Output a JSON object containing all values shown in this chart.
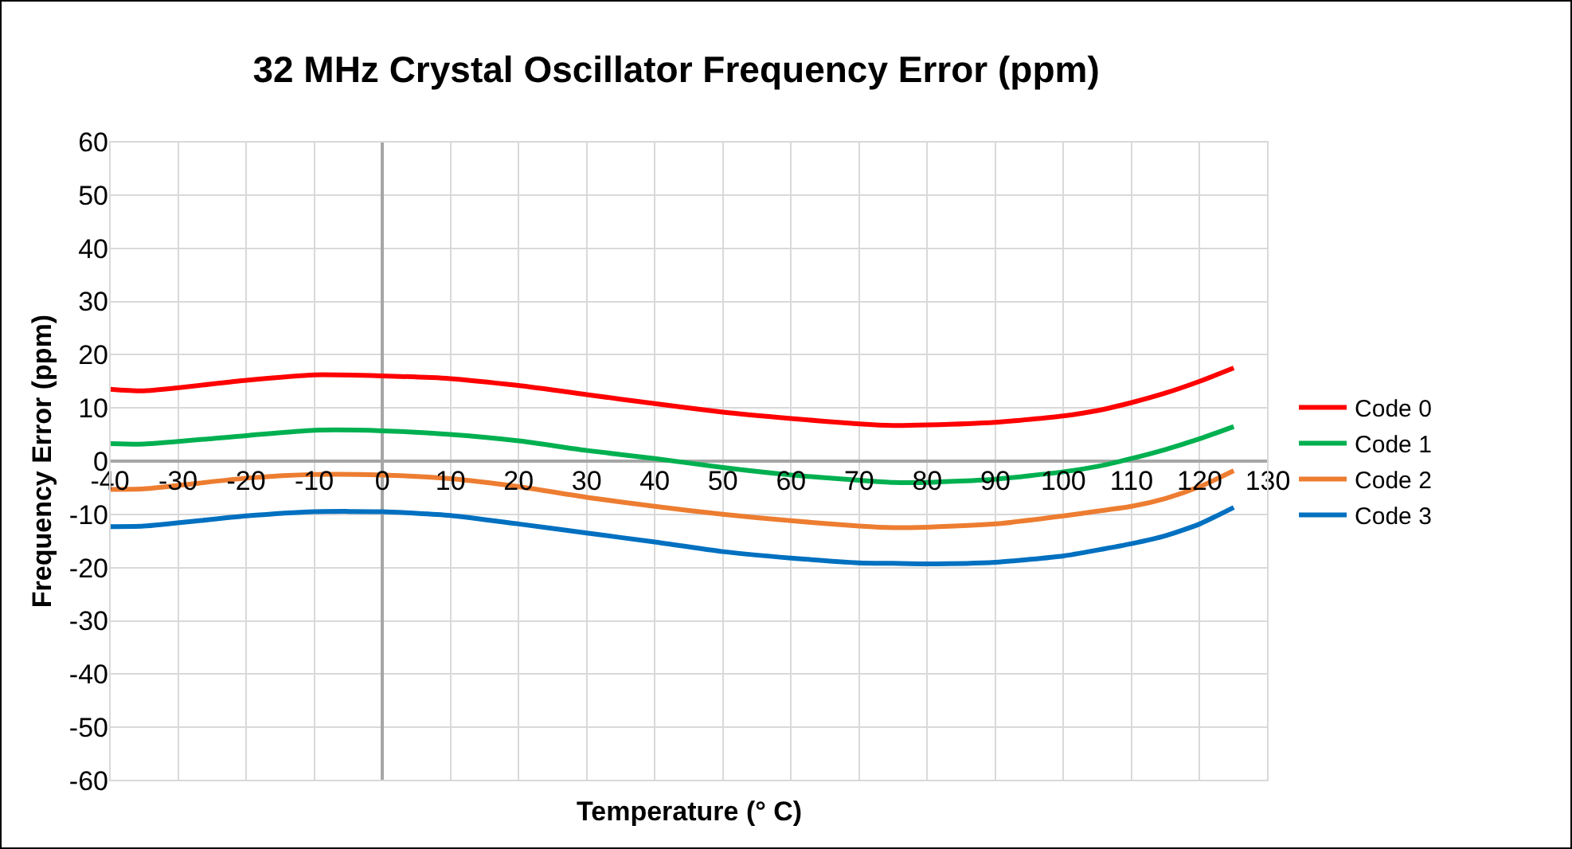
{
  "chart_data": {
    "type": "line",
    "title": "32 MHz Crystal Oscillator Frequency Error (ppm)",
    "xlabel": "Temperature (° C)",
    "ylabel": "Frequency Error (ppm)",
    "x": [
      -40,
      -35,
      -20,
      -10,
      0,
      10,
      20,
      30,
      40,
      50,
      60,
      70,
      75,
      80,
      90,
      100,
      105,
      110,
      115,
      120,
      125
    ],
    "series": [
      {
        "name": "Code 0",
        "color": "#ff0000",
        "values": [
          13.5,
          13.2,
          15.2,
          16.2,
          16,
          15.5,
          14.2,
          12.5,
          10.8,
          9.2,
          8,
          7,
          6.7,
          6.8,
          7.3,
          8.5,
          9.5,
          11,
          12.8,
          15,
          17.5
        ]
      },
      {
        "name": "Code 1",
        "color": "#00b050",
        "values": [
          3.3,
          3.2,
          4.8,
          5.8,
          5.7,
          5,
          3.8,
          2,
          0.5,
          -1.2,
          -2.6,
          -3.6,
          -4,
          -4,
          -3.4,
          -2,
          -1,
          0.5,
          2.2,
          4.2,
          6.5
        ]
      },
      {
        "name": "Code 2",
        "color": "#ed7d31",
        "values": [
          -5.3,
          -5.2,
          -3.2,
          -2.5,
          -2.6,
          -3.3,
          -4.8,
          -6.8,
          -8.5,
          -10,
          -11.2,
          -12.2,
          -12.5,
          -12.4,
          -11.8,
          -10.3,
          -9.4,
          -8.5,
          -7,
          -4.8,
          -1.8
        ]
      },
      {
        "name": "Code 3",
        "color": "#0070c0",
        "values": [
          -12.3,
          -12.2,
          -10.3,
          -9.5,
          -9.5,
          -10.2,
          -11.8,
          -13.5,
          -15.2,
          -17,
          -18.2,
          -19.1,
          -19.2,
          -19.3,
          -19,
          -17.8,
          -16.7,
          -15.5,
          -14,
          -11.8,
          -8.7
        ]
      }
    ],
    "xlim": [
      -40,
      130
    ],
    "xticks": [
      -40,
      -30,
      -20,
      -10,
      0,
      10,
      20,
      30,
      40,
      50,
      60,
      70,
      80,
      90,
      100,
      110,
      120,
      130
    ],
    "ylim": [
      -60,
      60
    ],
    "yticks": [
      -60,
      -50,
      -40,
      -30,
      -20,
      -10,
      0,
      10,
      20,
      30,
      40,
      50,
      60
    ],
    "grid": true,
    "legend": "right",
    "marker": "none",
    "line_style": "solid"
  }
}
